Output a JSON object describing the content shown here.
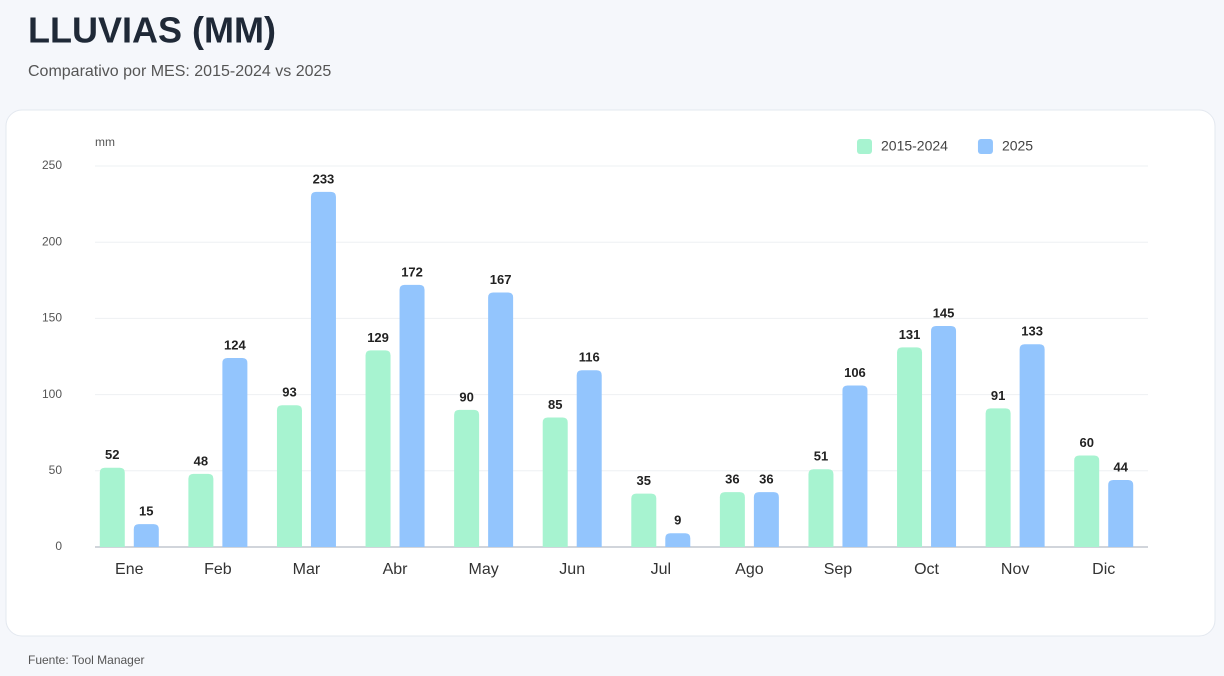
{
  "chart_data": {
    "type": "bar",
    "title": "LLUVIAS (MM)",
    "subtitle": "Comparativo por MES: 2015-2024 vs 2025",
    "y_label": "mm",
    "source": "Fuente: Tool Manager",
    "categories": [
      "Ene",
      "Feb",
      "Mar",
      "Abr",
      "May",
      "Jun",
      "Jul",
      "Ago",
      "Sep",
      "Oct",
      "Nov",
      "Dic"
    ],
    "series": [
      {
        "name": "2015-2024",
        "color": "#a7f3d0",
        "values": [
          52,
          48,
          93,
          129,
          90,
          85,
          35,
          36,
          51,
          131,
          91,
          60
        ]
      },
      {
        "name": "2025",
        "color": "#93c5fd",
        "values": [
          15,
          124,
          233,
          172,
          167,
          116,
          9,
          36,
          106,
          145,
          133,
          44
        ]
      }
    ],
    "ylim": [
      0,
      250
    ],
    "yticks": [
      0,
      50,
      100,
      150,
      200,
      250
    ],
    "grid": true,
    "legend": "top-right"
  }
}
